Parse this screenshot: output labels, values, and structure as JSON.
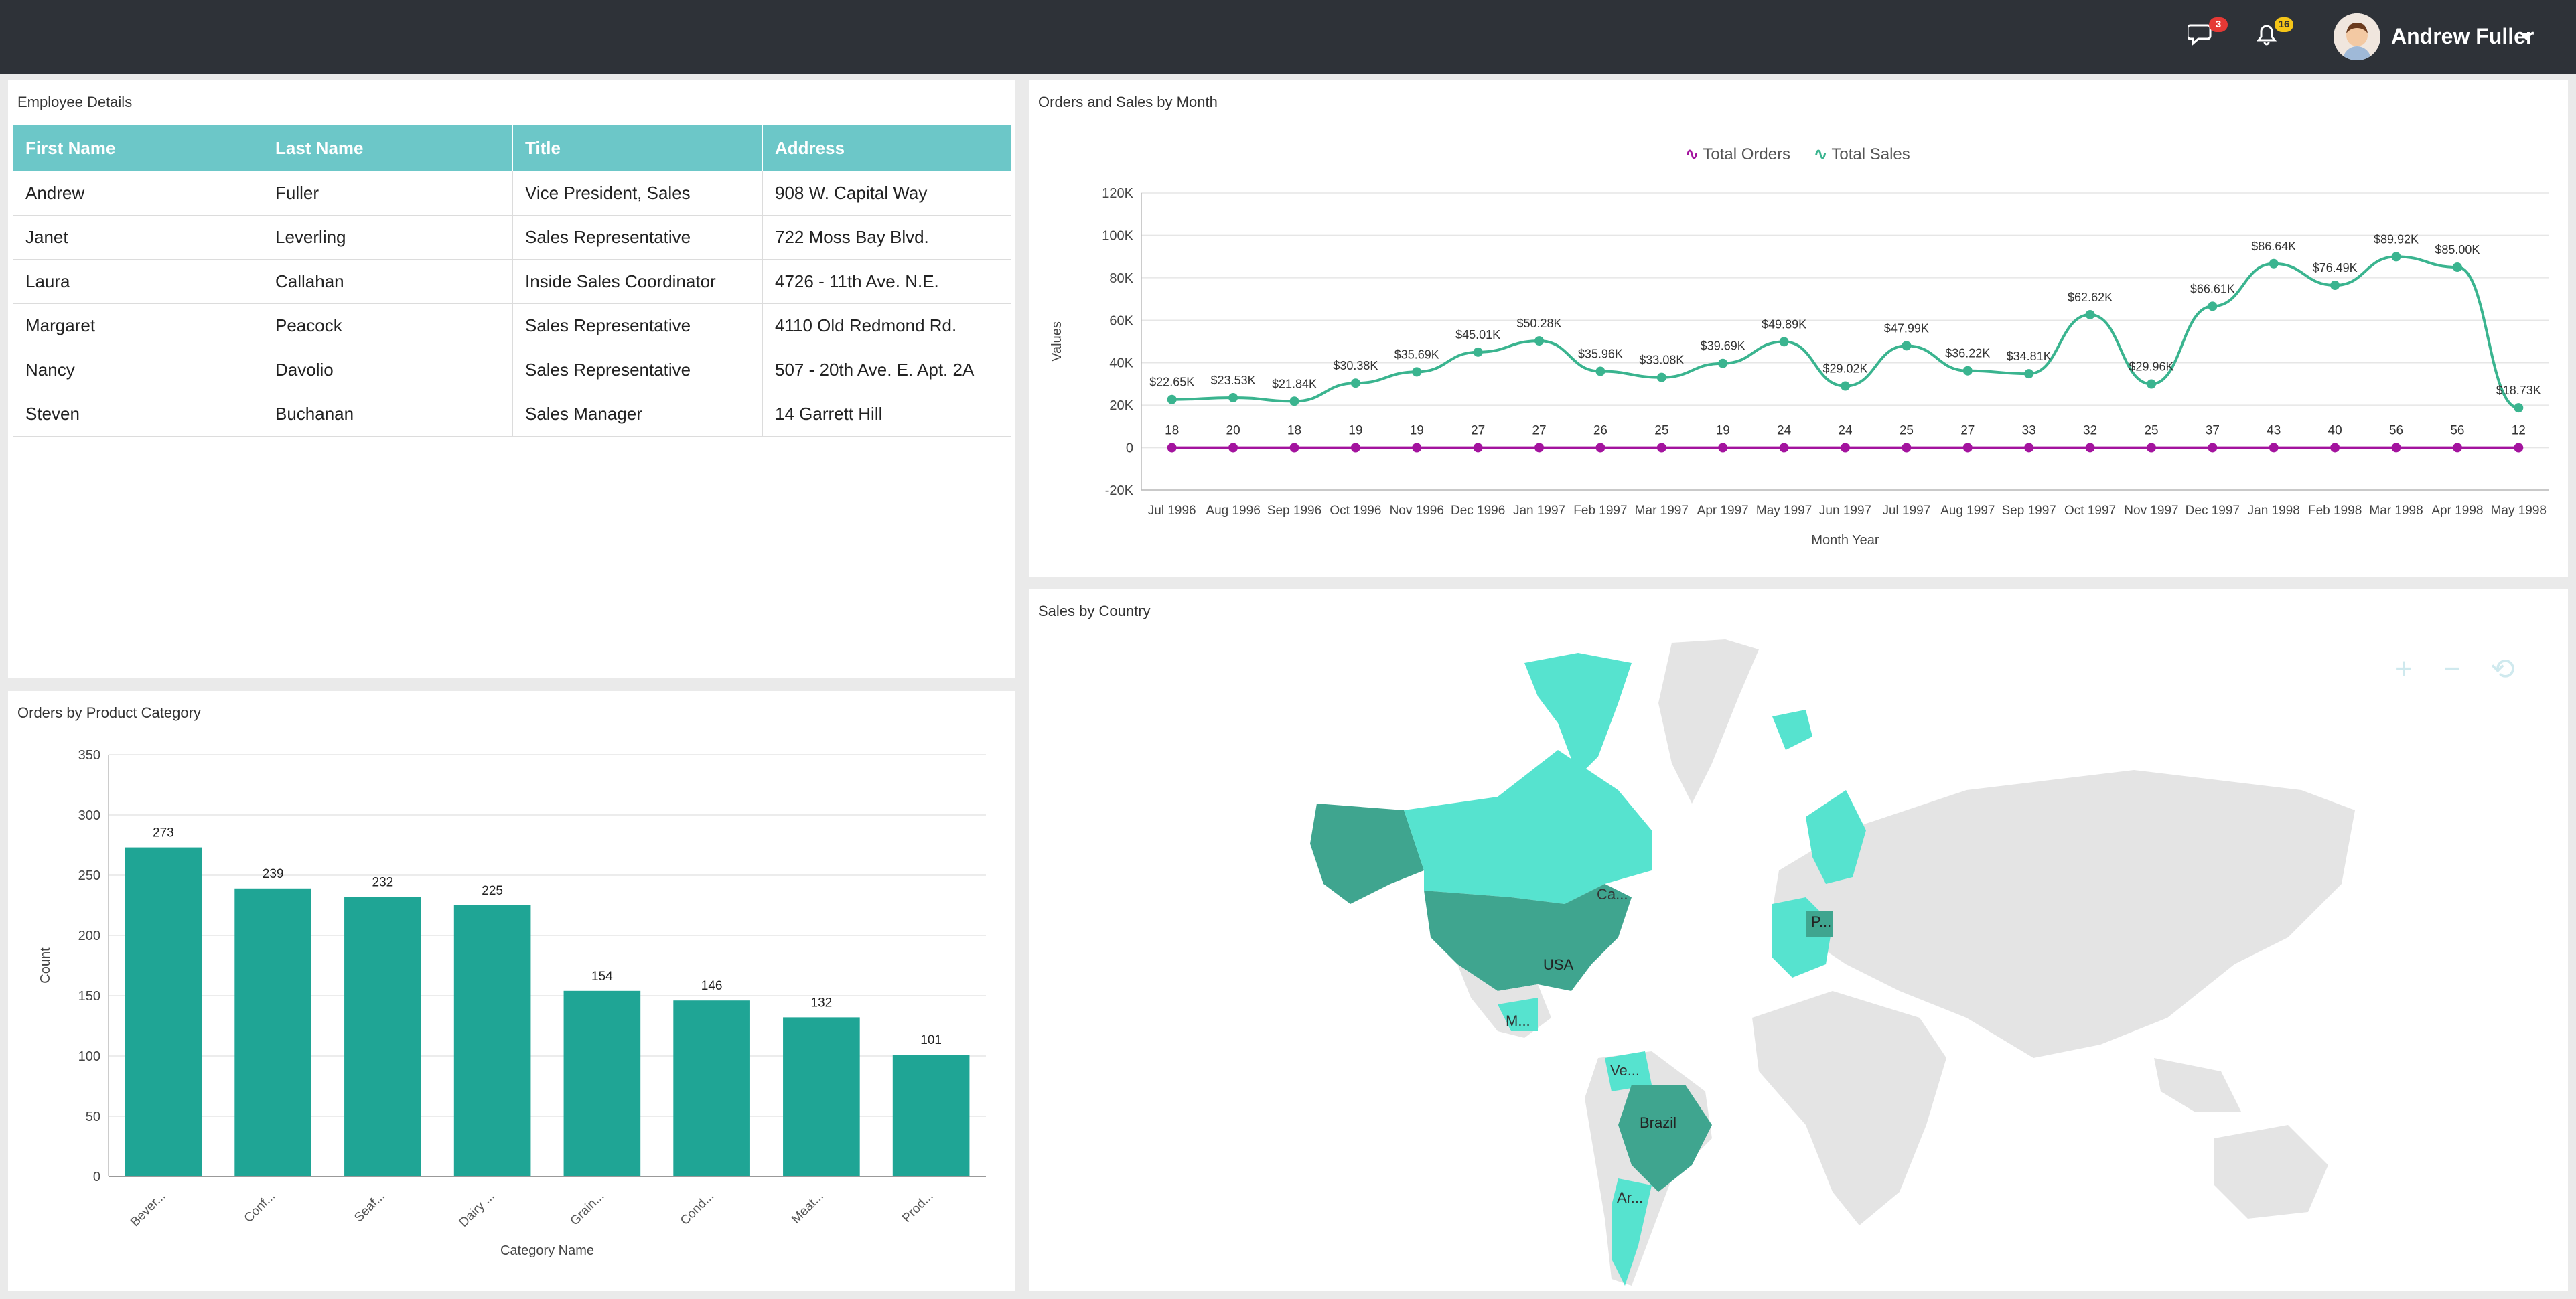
{
  "header": {
    "user_name": "Andrew Fuller",
    "messages_badge": "3",
    "notifications_badge": "16"
  },
  "employee_panel": {
    "title": "Employee Details",
    "columns": [
      "First Name",
      "Last Name",
      "Title",
      "Address"
    ],
    "rows": [
      [
        "Andrew",
        "Fuller",
        "Vice President, Sales",
        "908 W. Capital Way"
      ],
      [
        "Janet",
        "Leverling",
        "Sales Representative",
        "722 Moss Bay Blvd."
      ],
      [
        "Laura",
        "Callahan",
        "Inside Sales Coordinator",
        "4726 - 11th Ave. N.E."
      ],
      [
        "Margaret",
        "Peacock",
        "Sales Representative",
        "4110 Old Redmond Rd."
      ],
      [
        "Nancy",
        "Davolio",
        "Sales Representative",
        "507 - 20th Ave. E. Apt. 2A"
      ],
      [
        "Steven",
        "Buchanan",
        "Sales Manager",
        "14 Garrett Hill"
      ]
    ]
  },
  "line_panel": {
    "title": "Orders and Sales by Month"
  },
  "bar_panel": {
    "title": "Orders by Product Category"
  },
  "map_panel": {
    "title": "Sales by Country",
    "labels": [
      "Ca...",
      "USA",
      "M...",
      "Ve...",
      "Brazil",
      "Ar...",
      "P..."
    ],
    "tools": [
      "+",
      "−",
      "⟲"
    ]
  },
  "colors": {
    "teal": "#1fa595",
    "accent": "#6cc7c8",
    "orders": "#a3139e",
    "sales": "#3ab48f"
  },
  "chart_data": [
    {
      "type": "line",
      "title": "",
      "xlabel": "Month Year",
      "ylabel": "Values",
      "ylim": [
        -20000,
        120000
      ],
      "y_ticks": [
        "-20K",
        "0",
        "20K",
        "40K",
        "60K",
        "80K",
        "100K",
        "120K"
      ],
      "legend": "top-center",
      "categories": [
        "Jul 1996",
        "Aug 1996",
        "Sep 1996",
        "Oct 1996",
        "Nov 1996",
        "Dec 1996",
        "Jan 1997",
        "Feb 1997",
        "Mar 1997",
        "Apr 1997",
        "May 1997",
        "Jun 1997",
        "Jul 1997",
        "Aug 1997",
        "Sep 1997",
        "Oct 1997",
        "Nov 1997",
        "Dec 1997",
        "Jan 1998",
        "Feb 1998",
        "Mar 1998",
        "Apr 1998",
        "May 1998"
      ],
      "series": [
        {
          "name": "Total Orders",
          "values": [
            18,
            20,
            18,
            19,
            19,
            27,
            27,
            26,
            25,
            19,
            24,
            24,
            25,
            27,
            33,
            32,
            25,
            37,
            43,
            40,
            56,
            56,
            12
          ],
          "labels": [
            "18",
            "20",
            "18",
            "19",
            "19",
            "27",
            "27",
            "26",
            "25",
            "19",
            "24",
            "24",
            "25",
            "27",
            "33",
            "32",
            "25",
            "37",
            "43",
            "40",
            "56",
            "56",
            "12"
          ]
        },
        {
          "name": "Total Sales",
          "values": [
            22650,
            23530,
            21840,
            30380,
            35690,
            45010,
            50280,
            35960,
            33080,
            39690,
            49890,
            29020,
            47990,
            36220,
            34810,
            62620,
            29960,
            66610,
            86640,
            76490,
            89920,
            85000,
            18730
          ],
          "labels": [
            "$22.65K",
            "$23.53K",
            "$21.84K",
            "$30.38K",
            "$35.69K",
            "$45.01K",
            "$50.28K",
            "$35.96K",
            "$33.08K",
            "$39.69K",
            "$49.89K",
            "$29.02K",
            "$47.99K",
            "$36.22K",
            "$34.81K",
            "$62.62K",
            "$29.96K",
            "$66.61K",
            "$86.64K",
            "$76.49K",
            "$89.92K",
            "$85.00K",
            "$18.73K"
          ]
        }
      ]
    },
    {
      "type": "bar",
      "title": "",
      "xlabel": "Category Name",
      "ylabel": "Count",
      "ylim": [
        0,
        350
      ],
      "y_ticks": [
        "0",
        "50",
        "100",
        "150",
        "200",
        "250",
        "300",
        "350"
      ],
      "categories": [
        "Bever...",
        "Conf...",
        "Seaf...",
        "Dairy ...",
        "Grain...",
        "Cond...",
        "Meat...",
        "Prod..."
      ],
      "values": [
        273,
        239,
        232,
        225,
        154,
        146,
        132,
        101
      ]
    }
  ]
}
